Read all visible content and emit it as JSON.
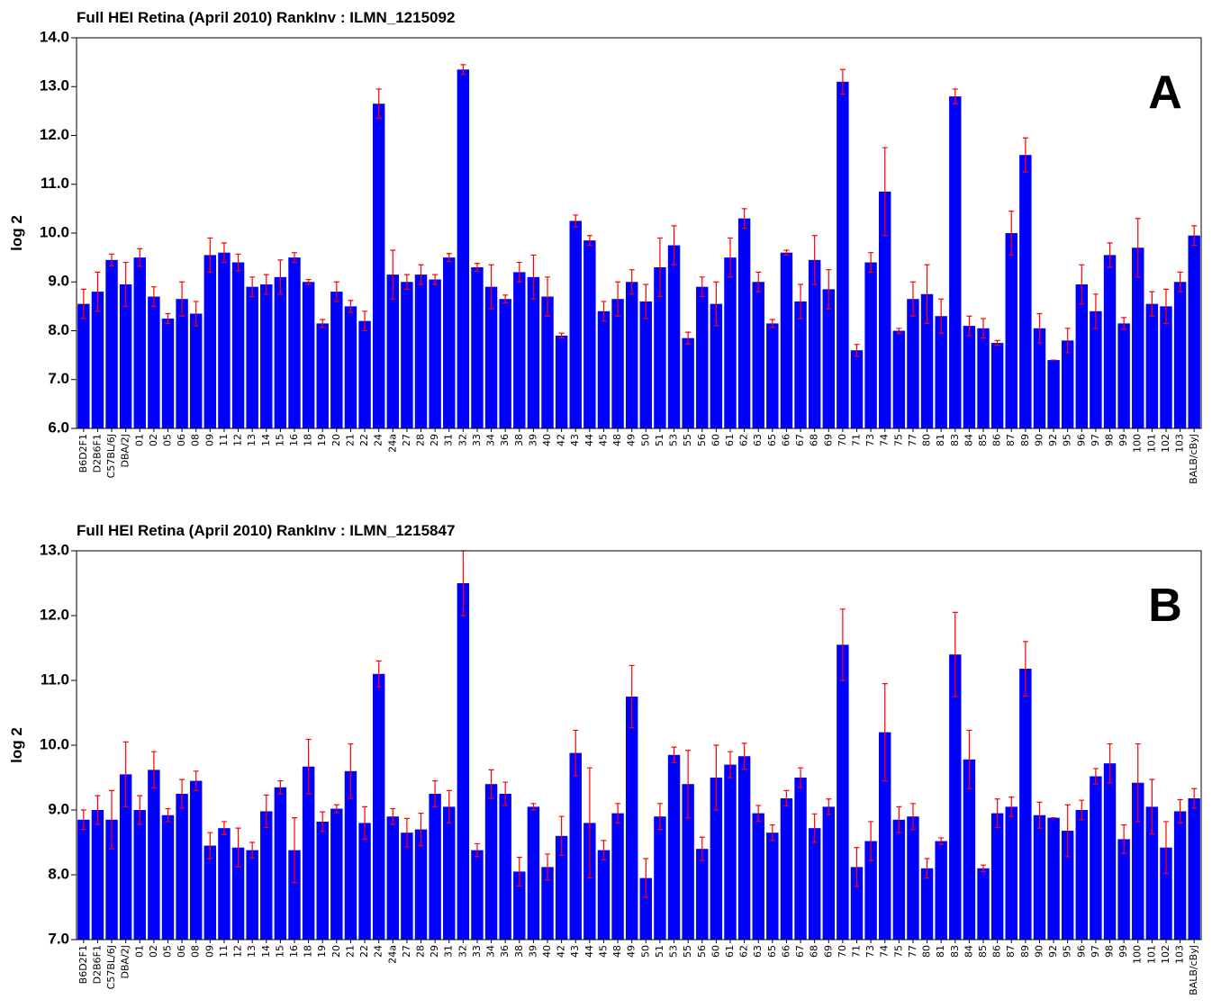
{
  "chart_data": [
    {
      "type": "bar",
      "title": "Full HEI Retina (April 2010) RankInv : ILMN_1215092",
      "ylabel": "log 2",
      "annotation": "A",
      "categories": [
        "B6D2F1",
        "D2B6F1",
        "C57BL/6J",
        "DBA/2J",
        "01",
        "02",
        "05",
        "06",
        "08",
        "09",
        "11",
        "12",
        "13",
        "14",
        "15",
        "16",
        "18",
        "19",
        "20",
        "21",
        "22",
        "24",
        "24a",
        "27",
        "28",
        "29",
        "31",
        "32",
        "33",
        "34",
        "36",
        "38",
        "39",
        "40",
        "42",
        "43",
        "44",
        "45",
        "48",
        "49",
        "50",
        "51",
        "53",
        "55",
        "56",
        "60",
        "61",
        "62",
        "63",
        "65",
        "66",
        "67",
        "68",
        "69",
        "70",
        "71",
        "73",
        "74",
        "75",
        "77",
        "80",
        "81",
        "83",
        "84",
        "85",
        "86",
        "87",
        "89",
        "90",
        "92",
        "95",
        "96",
        "97",
        "98",
        "99",
        "100",
        "101",
        "102",
        "103",
        "BALB/cByJ"
      ],
      "values": [
        8.55,
        8.8,
        9.45,
        8.95,
        9.5,
        8.7,
        8.25,
        8.65,
        8.35,
        9.55,
        9.6,
        9.4,
        8.9,
        8.95,
        9.1,
        9.5,
        9.0,
        8.15,
        8.8,
        8.5,
        8.2,
        12.65,
        9.15,
        9.0,
        9.15,
        9.05,
        9.5,
        13.35,
        9.3,
        8.9,
        8.65,
        9.2,
        9.1,
        8.7,
        7.9,
        10.25,
        9.85,
        8.4,
        8.65,
        9.0,
        8.6,
        9.3,
        9.75,
        7.85,
        8.9,
        8.55,
        9.5,
        10.3,
        9.0,
        8.15,
        9.6,
        8.6,
        9.45,
        8.85,
        13.1,
        7.6,
        9.4,
        10.85,
        8.0,
        8.65,
        8.75,
        8.3,
        12.8,
        8.1,
        8.05,
        7.75,
        10.0,
        11.6,
        8.05,
        7.4,
        7.8,
        8.95,
        8.4,
        9.55,
        8.15,
        9.7,
        8.55,
        8.5,
        9.0,
        9.95
      ],
      "errors": [
        0.3,
        0.4,
        0.12,
        0.45,
        0.18,
        0.2,
        0.1,
        0.35,
        0.25,
        0.35,
        0.2,
        0.17,
        0.2,
        0.2,
        0.35,
        0.1,
        0.05,
        0.08,
        0.2,
        0.12,
        0.2,
        0.3,
        0.5,
        0.15,
        0.2,
        0.1,
        0.08,
        0.1,
        0.08,
        0.45,
        0.08,
        0.2,
        0.45,
        0.4,
        0.05,
        0.12,
        0.1,
        0.2,
        0.35,
        0.25,
        0.35,
        0.6,
        0.4,
        0.12,
        0.2,
        0.45,
        0.4,
        0.2,
        0.2,
        0.08,
        0.05,
        0.35,
        0.5,
        0.4,
        0.25,
        0.12,
        0.2,
        0.9,
        0.05,
        0.35,
        0.6,
        0.35,
        0.15,
        0.2,
        0.2,
        0.05,
        0.45,
        0.35,
        0.3,
        0,
        0.25,
        0.4,
        0.35,
        0.25,
        0.12,
        0.6,
        0.25,
        0.35,
        0.2,
        0.2
      ],
      "color": "#0000ff",
      "error_color": "#ff0000",
      "ylim": [
        6,
        14
      ],
      "yticks": [
        {
          "value": 6,
          "label": "6.0"
        },
        {
          "value": 7,
          "label": "7.0"
        },
        {
          "value": 8,
          "label": "8.0"
        },
        {
          "value": 9,
          "label": "9.0"
        },
        {
          "value": 10,
          "label": "10.0"
        },
        {
          "value": 11,
          "label": "11.0"
        },
        {
          "value": 12,
          "label": "12.0"
        },
        {
          "value": 13,
          "label": "13.0"
        },
        {
          "value": 14,
          "label": "14.0"
        }
      ]
    },
    {
      "type": "bar",
      "title": "Full HEI Retina (April 2010) RankInv : ILMN_1215847",
      "ylabel": "log 2",
      "annotation": "B",
      "categories": [
        "B6D2F1",
        "D2B6F1",
        "C57BL/6J",
        "DBA/2J",
        "01",
        "02",
        "05",
        "06",
        "08",
        "09",
        "11",
        "12",
        "13",
        "14",
        "15",
        "16",
        "18",
        "19",
        "20",
        "21",
        "22",
        "24",
        "24a",
        "27",
        "28",
        "29",
        "31",
        "32",
        "33",
        "34",
        "36",
        "38",
        "39",
        "40",
        "42",
        "43",
        "44",
        "45",
        "48",
        "49",
        "50",
        "51",
        "53",
        "55",
        "56",
        "60",
        "61",
        "62",
        "63",
        "65",
        "66",
        "67",
        "68",
        "69",
        "70",
        "71",
        "73",
        "74",
        "75",
        "77",
        "80",
        "81",
        "83",
        "84",
        "85",
        "86",
        "87",
        "89",
        "90",
        "92",
        "95",
        "96",
        "97",
        "98",
        "99",
        "100",
        "101",
        "102",
        "103",
        "BALB/cByJ"
      ],
      "values": [
        8.85,
        9.0,
        8.85,
        9.55,
        9.0,
        9.62,
        8.92,
        9.25,
        9.45,
        8.45,
        8.72,
        8.42,
        8.38,
        8.98,
        9.35,
        8.38,
        9.67,
        8.82,
        9.02,
        9.6,
        8.8,
        11.1,
        8.9,
        8.65,
        8.7,
        9.25,
        9.05,
        12.5,
        8.38,
        9.4,
        9.25,
        8.05,
        9.05,
        8.12,
        8.6,
        9.88,
        8.8,
        8.38,
        8.95,
        10.75,
        7.95,
        8.9,
        9.85,
        9.4,
        8.4,
        9.5,
        9.7,
        9.83,
        8.95,
        8.65,
        9.18,
        9.5,
        8.72,
        9.05,
        11.55,
        8.12,
        8.52,
        10.2,
        8.85,
        8.9,
        8.1,
        8.52,
        11.4,
        9.78,
        8.1,
        8.95,
        9.05,
        11.18,
        8.92,
        8.88,
        8.68,
        9.0,
        9.52,
        9.72,
        8.55,
        9.42,
        9.05,
        8.42,
        8.98,
        9.18
      ],
      "errors": [
        0.15,
        0.22,
        0.45,
        0.5,
        0.22,
        0.28,
        0.1,
        0.22,
        0.15,
        0.2,
        0.1,
        0.3,
        0.12,
        0.25,
        0.1,
        0.5,
        0.42,
        0.15,
        0.06,
        0.42,
        0.25,
        0.2,
        0.12,
        0.22,
        0.25,
        0.2,
        0.25,
        0.5,
        0.1,
        0.22,
        0.18,
        0.22,
        0.05,
        0.2,
        0.3,
        0.35,
        0.85,
        0.15,
        0.15,
        0.48,
        0.3,
        0.2,
        0.12,
        0.52,
        0.18,
        0.5,
        0.2,
        0.2,
        0.12,
        0.12,
        0.12,
        0.15,
        0.22,
        0.12,
        0.55,
        0.3,
        0.3,
        0.75,
        0.2,
        0.2,
        0.15,
        0.05,
        0.65,
        0.45,
        0.05,
        0.22,
        0.15,
        0.42,
        0.2,
        0,
        0.4,
        0.15,
        0.12,
        0.3,
        0.22,
        0.6,
        0.42,
        0.4,
        0.18,
        0.15
      ],
      "color": "#0000ff",
      "error_color": "#ff0000",
      "ylim": [
        7,
        13
      ],
      "yticks": [
        {
          "value": 7,
          "label": "7.0"
        },
        {
          "value": 8,
          "label": "8.0"
        },
        {
          "value": 9,
          "label": "9.0"
        },
        {
          "value": 10,
          "label": "10.0"
        },
        {
          "value": 11,
          "label": "11.0"
        },
        {
          "value": 12,
          "label": "12.0"
        },
        {
          "value": 13,
          "label": "13.0"
        }
      ]
    }
  ]
}
